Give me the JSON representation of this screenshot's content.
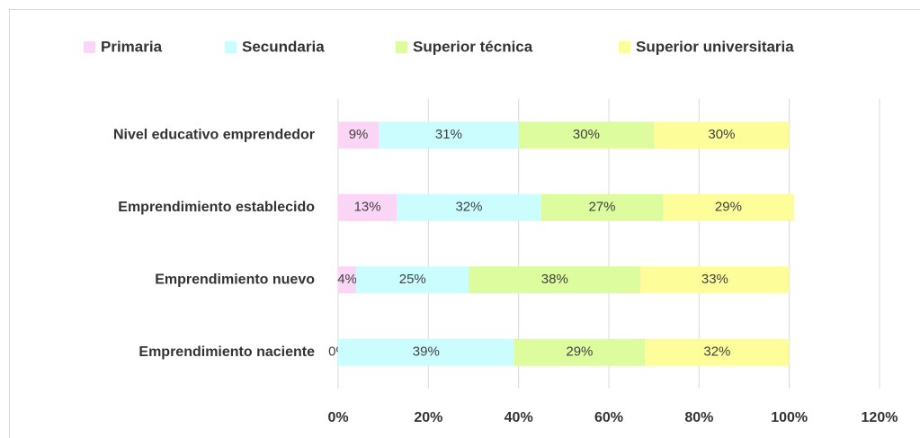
{
  "chart_data": {
    "type": "stacked-barh",
    "categories": [
      "Nivel educativo emprendedor",
      "Emprendimiento establecido",
      "Emprendimiento nuevo",
      "Emprendimiento naciente"
    ],
    "series": [
      {
        "name": "Primaria",
        "color": "#fbd5f6",
        "values": [
          9,
          13,
          4,
          0
        ],
        "value_labels": [
          "9%",
          "13%",
          "4%",
          "0%"
        ]
      },
      {
        "name": "Secundaria",
        "color": "#ccfdfe",
        "values": [
          31,
          32,
          25,
          39
        ],
        "value_labels": [
          "31%",
          "32%",
          "25%",
          "39%"
        ]
      },
      {
        "name": "Superior técnica",
        "color": "#dcfc9e",
        "values": [
          30,
          27,
          38,
          29
        ],
        "value_labels": [
          "30%",
          "27%",
          "38%",
          "29%"
        ]
      },
      {
        "name": "Superior universitaria",
        "color": "#fdfd9a",
        "values": [
          30,
          29,
          33,
          32
        ],
        "value_labels": [
          "30%",
          "29%",
          "33%",
          "32%"
        ]
      }
    ],
    "xlim": [
      0,
      120
    ],
    "xticks": [
      {
        "value": 0,
        "label": "0%"
      },
      {
        "value": 20,
        "label": "20%"
      },
      {
        "value": 40,
        "label": "40%"
      },
      {
        "value": 60,
        "label": "60%"
      },
      {
        "value": 80,
        "label": "80%"
      },
      {
        "value": 100,
        "label": "100%"
      },
      {
        "value": 120,
        "label": "120%"
      }
    ],
    "grid": true,
    "legend": "top"
  }
}
